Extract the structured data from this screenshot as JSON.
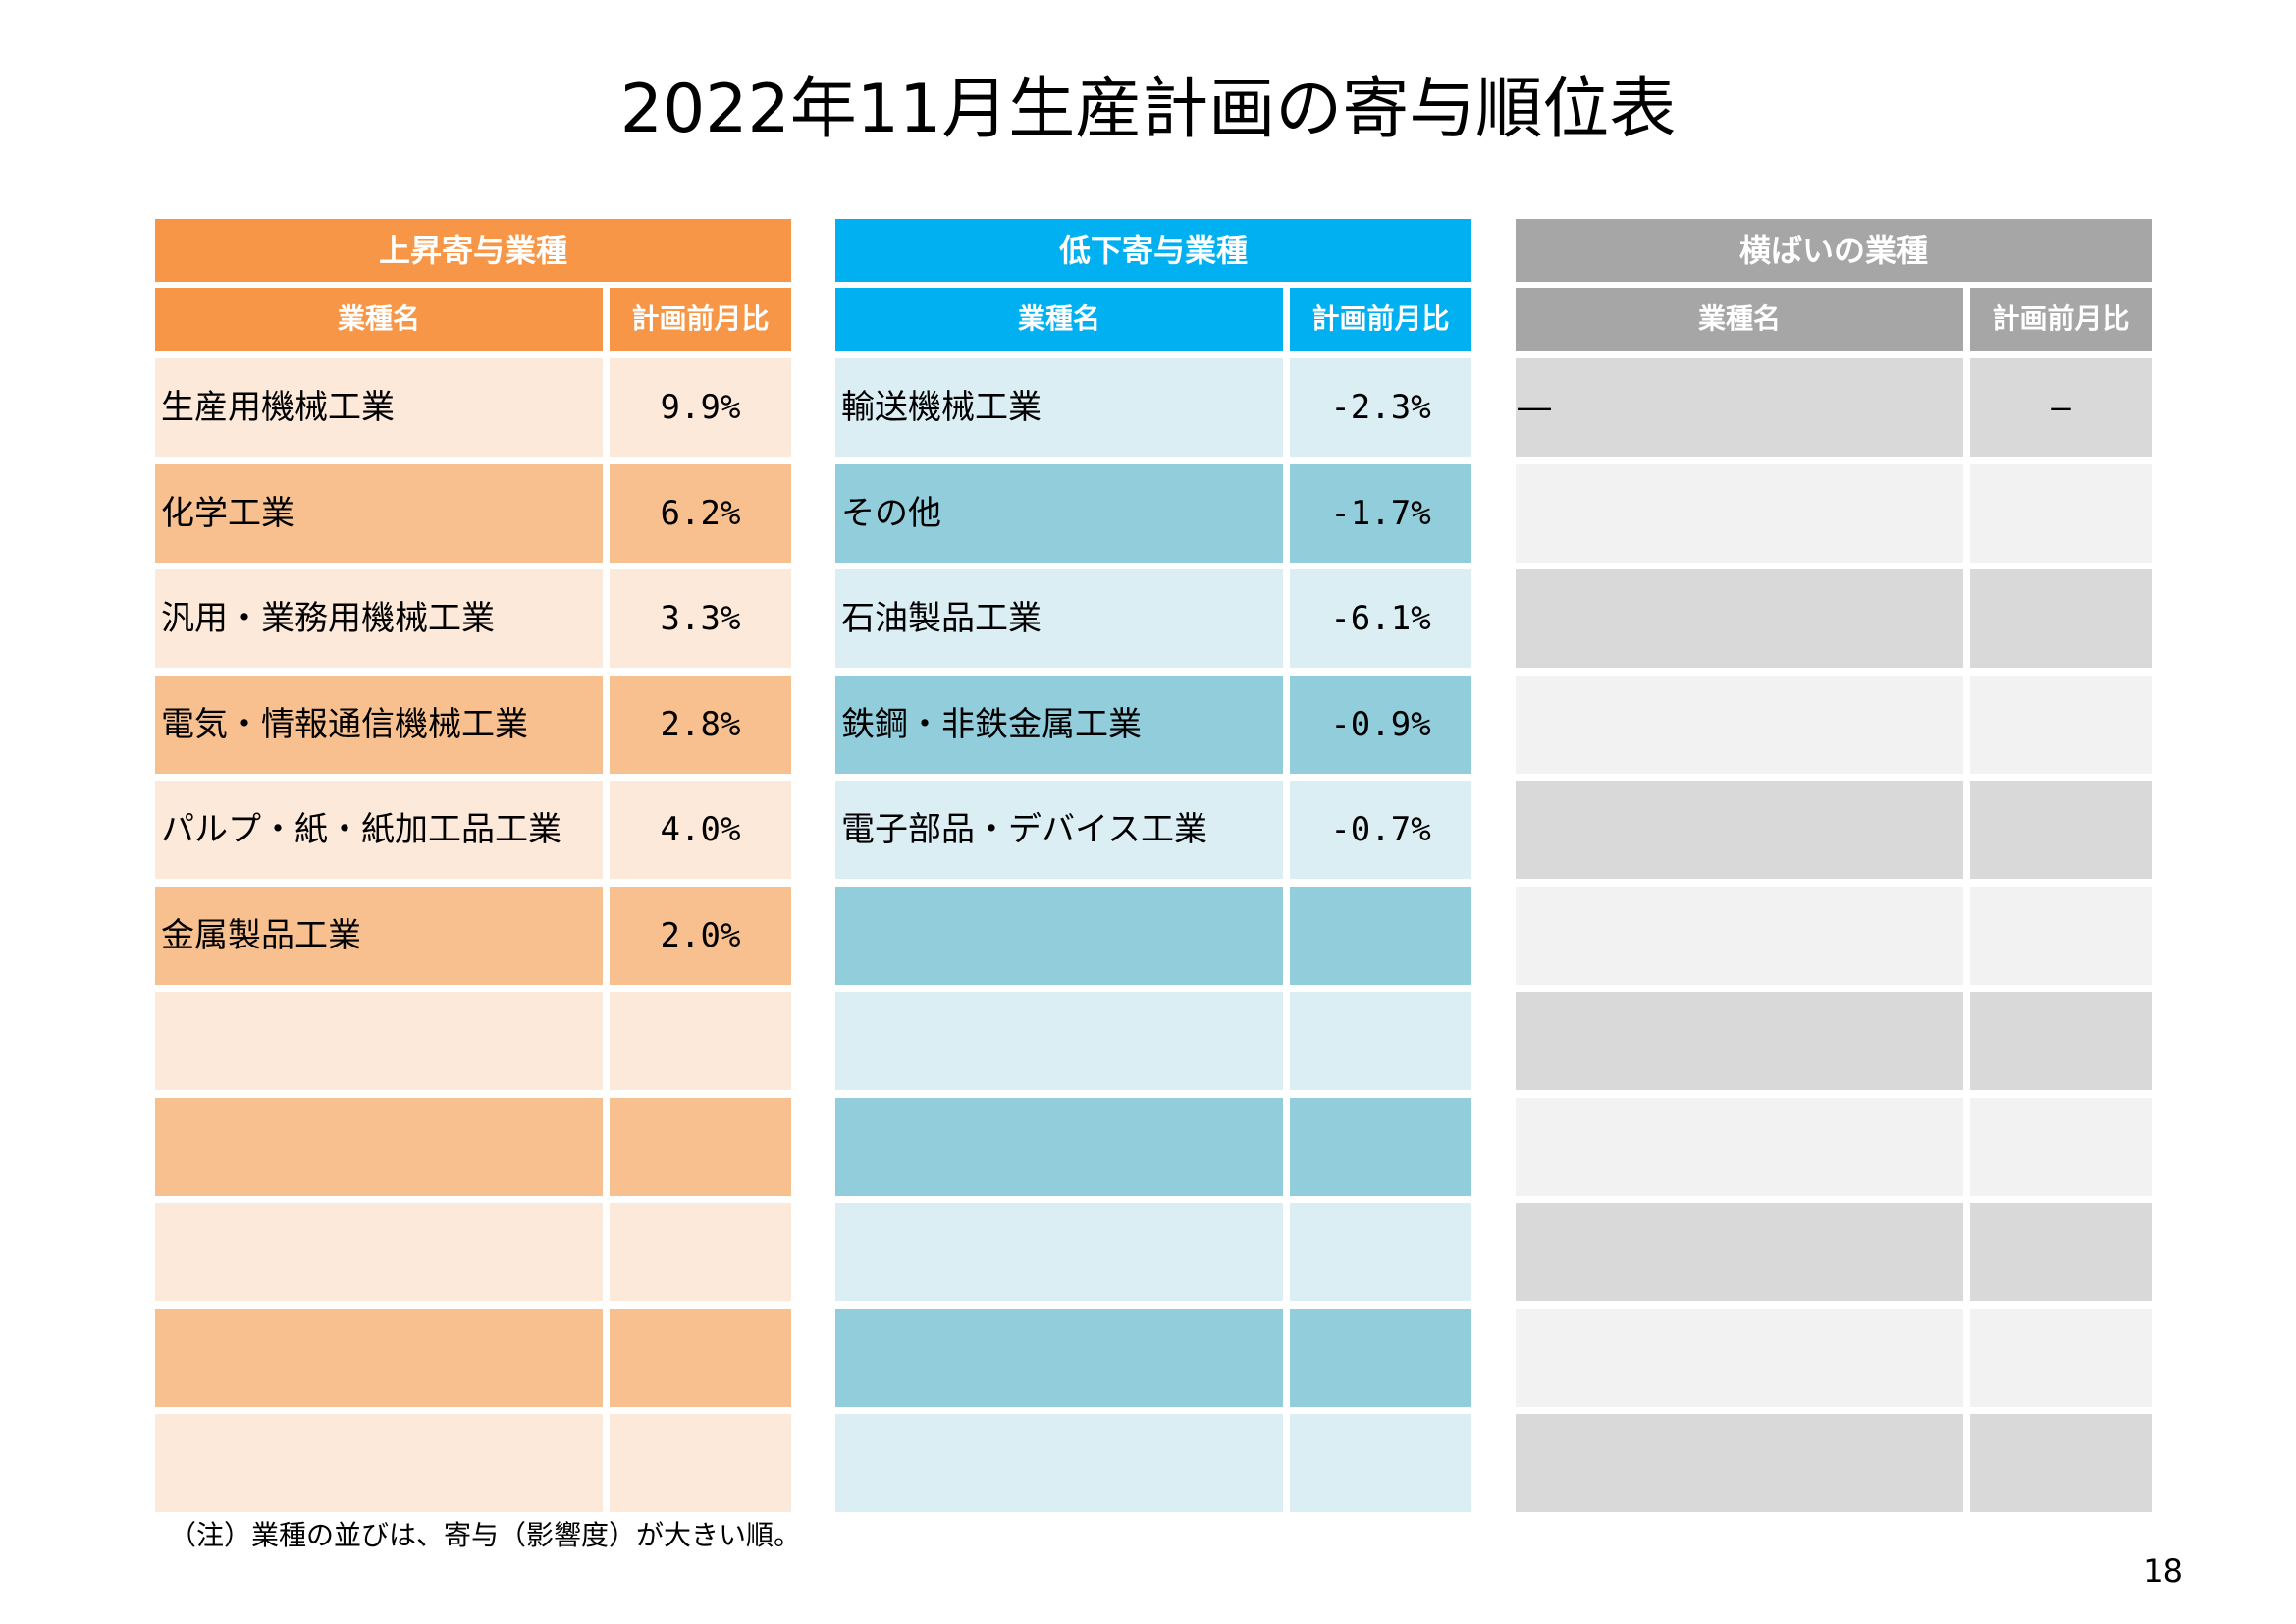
{
  "title": "2022年11月生産計画の寄与順位表",
  "colors": {
    "up_header": "#F79646",
    "up_row_light": "#FDE9DA",
    "up_row_dark": "#F9C08F",
    "down_header": "#00B0F0",
    "down_row_light": "#DBEEF4",
    "down_row_dark": "#92CDDC",
    "flat_header": "#A6A6A6",
    "flat_row_light": "#D9D9D9",
    "flat_row_dark": "#F2F2F2"
  },
  "tables": [
    {
      "key": "up",
      "title": "上昇寄与業種",
      "col_name": "業種名",
      "col_value": "計画前月比",
      "rows": [
        {
          "name": "生産用機械工業",
          "value": "9.9%"
        },
        {
          "name": "化学工業",
          "value": "6.2%"
        },
        {
          "name": "汎用・業務用機械工業",
          "value": "3.3%"
        },
        {
          "name": "電気・情報通信機械工業",
          "value": "2.8%"
        },
        {
          "name": "パルプ・紙・紙加工品工業",
          "value": "4.0%"
        },
        {
          "name": "金属製品工業",
          "value": "2.0%"
        },
        {
          "name": "",
          "value": ""
        },
        {
          "name": "",
          "value": ""
        },
        {
          "name": "",
          "value": ""
        },
        {
          "name": "",
          "value": ""
        },
        {
          "name": "",
          "value": ""
        }
      ]
    },
    {
      "key": "down",
      "title": "低下寄与業種",
      "col_name": "業種名",
      "col_value": "計画前月比",
      "rows": [
        {
          "name": "輸送機械工業",
          "value": "-2.3%"
        },
        {
          "name": "その他",
          "value": "-1.7%"
        },
        {
          "name": "石油製品工業",
          "value": "-6.1%"
        },
        {
          "name": "鉄鋼・非鉄金属工業",
          "value": "-0.9%"
        },
        {
          "name": "電子部品・デバイス工業",
          "value": "-0.7%"
        },
        {
          "name": "",
          "value": ""
        },
        {
          "name": "",
          "value": ""
        },
        {
          "name": "",
          "value": ""
        },
        {
          "name": "",
          "value": ""
        },
        {
          "name": "",
          "value": ""
        },
        {
          "name": "",
          "value": ""
        }
      ]
    },
    {
      "key": "flat",
      "title": "横ばいの業種",
      "col_name": "業種名",
      "col_value": "計画前月比",
      "rows": [
        {
          "name": "―",
          "value": "―"
        },
        {
          "name": "",
          "value": ""
        },
        {
          "name": "",
          "value": ""
        },
        {
          "name": "",
          "value": ""
        },
        {
          "name": "",
          "value": ""
        },
        {
          "name": "",
          "value": ""
        },
        {
          "name": "",
          "value": ""
        },
        {
          "name": "",
          "value": ""
        },
        {
          "name": "",
          "value": ""
        },
        {
          "name": "",
          "value": ""
        },
        {
          "name": "",
          "value": ""
        }
      ]
    }
  ],
  "note": "（注）業種の並びは、寄与（影響度）が大きい順。",
  "page_number": "18"
}
